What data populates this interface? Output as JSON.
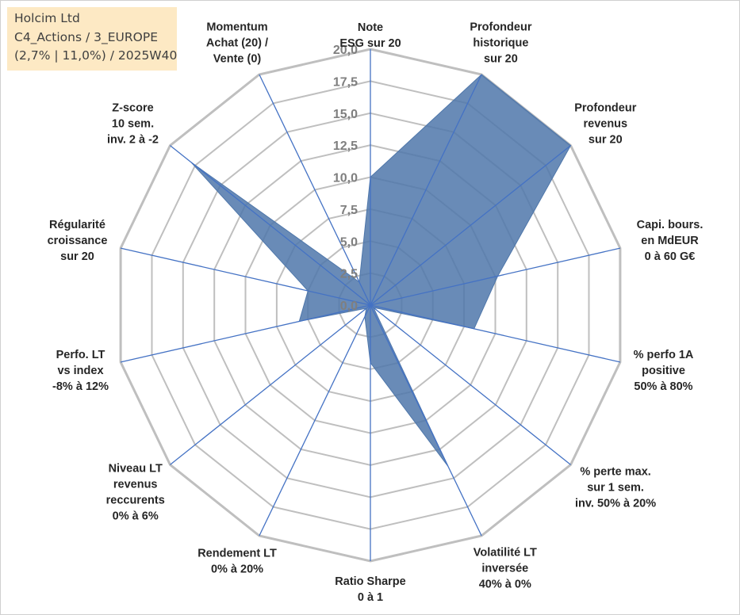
{
  "info": {
    "line1": "Holcim Ltd",
    "line2": "C4_Actions / 3_EUROPE",
    "line3": "(2,7% | 11,0%) / 2025W40"
  },
  "chart_data": {
    "type": "radar",
    "rmin": 0,
    "rmax": 20,
    "ticks": [
      "0,0",
      "2,5",
      "5,0",
      "7,5",
      "10,0",
      "12,5",
      "15,0",
      "17,5",
      "20,0"
    ],
    "grid": true,
    "colors": {
      "fill": "#4f77aa",
      "axis": "#4472c4",
      "grid": "#bfbfbf"
    },
    "axes": [
      {
        "label": [
          "Note",
          "ESG sur 20"
        ],
        "value": 10.0
      },
      {
        "label": [
          "Profondeur",
          "historique",
          "sur 20"
        ],
        "value": 20.0
      },
      {
        "label": [
          "Profondeur",
          "revenus",
          "sur 20"
        ],
        "value": 20.0
      },
      {
        "label": [
          "Capi. bours.",
          "en MdEUR",
          "0 à 60 G€"
        ],
        "value": 10.2
      },
      {
        "label": [
          "% perfo 1A",
          "positive",
          "50% à 80%"
        ],
        "value": 8.3
      },
      {
        "label": [
          "% perte max.",
          "sur 1 sem.",
          "inv. 50% à 20%"
        ],
        "value": 0.3
      },
      {
        "label": [
          "Volatilité LT",
          "inversée",
          "40% à 0%"
        ],
        "value": 14.0
      },
      {
        "label": [
          "Ratio Sharpe",
          "0 à 1"
        ],
        "value": 4.5
      },
      {
        "label": [
          "Rendement LT",
          "0% à 20%"
        ],
        "value": 1.0
      },
      {
        "label": [
          "Niveau LT",
          "revenus",
          "reccurents",
          "0% à 6%"
        ],
        "value": 0.4
      },
      {
        "label": [
          "Perfo. LT",
          "vs index",
          "-8% à 12%"
        ],
        "value": 5.7
      },
      {
        "label": [
          "Régularité",
          "croissance",
          "sur 20"
        ],
        "value": 5.0
      },
      {
        "label": [
          "Z-score",
          "10 sem.",
          "inv. 2 à -2"
        ],
        "value": 17.9
      },
      {
        "label": [
          "Momentum",
          "Achat (20) /",
          "Vente (0)"
        ],
        "value": 2.0
      }
    ]
  }
}
